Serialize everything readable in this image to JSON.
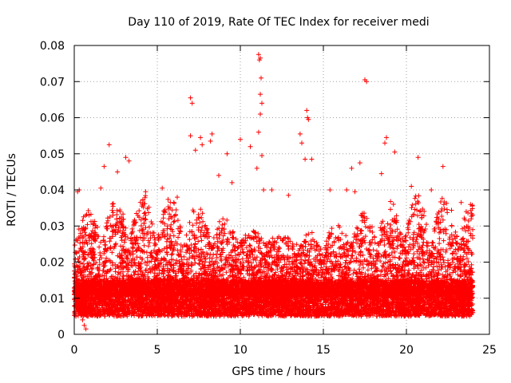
{
  "chart_data": {
    "type": "scatter",
    "title": "Day 110 of 2019, Rate Of TEC Index for receiver medi",
    "xlabel": "GPS time / hours",
    "ylabel": "ROTI / TECUs",
    "xlim": [
      0,
      25
    ],
    "ylim": [
      0,
      0.08
    ],
    "x_ticks": [
      0,
      5,
      10,
      15,
      20,
      25
    ],
    "x_tick_labels": [
      "0",
      "5",
      "10",
      "15",
      "20",
      "25"
    ],
    "y_ticks": [
      0,
      0.01,
      0.02,
      0.03,
      0.04,
      0.05,
      0.06,
      0.07,
      0.08
    ],
    "y_tick_labels": [
      "0",
      "0.01",
      "0.02",
      "0.03",
      "0.04",
      "0.05",
      "0.06",
      "0.07",
      "0.08"
    ],
    "grid": true,
    "marker": "plus",
    "color": "#ff0000",
    "x_data_range": [
      0,
      24
    ],
    "baseline_band": [
      0.005,
      0.015
    ],
    "points": [
      [
        0.2,
        0.0395
      ],
      [
        0.3,
        0.04
      ],
      [
        0.5,
        0.004
      ],
      [
        0.6,
        0.0025
      ],
      [
        0.7,
        0.0015
      ],
      [
        1.0,
        0.0165
      ],
      [
        1.6,
        0.0405
      ],
      [
        1.8,
        0.0465
      ],
      [
        2.1,
        0.0525
      ],
      [
        2.6,
        0.045
      ],
      [
        3.1,
        0.049
      ],
      [
        3.3,
        0.048
      ],
      [
        3.6,
        0.0305
      ],
      [
        4.3,
        0.0395
      ],
      [
        5.3,
        0.0405
      ],
      [
        6.2,
        0.038
      ],
      [
        7.0,
        0.0655
      ],
      [
        7.1,
        0.064
      ],
      [
        7.0,
        0.055
      ],
      [
        7.3,
        0.051
      ],
      [
        7.6,
        0.0545
      ],
      [
        7.7,
        0.0525
      ],
      [
        8.2,
        0.0535
      ],
      [
        8.3,
        0.0555
      ],
      [
        8.7,
        0.044
      ],
      [
        9.2,
        0.05
      ],
      [
        9.5,
        0.042
      ],
      [
        10.0,
        0.054
      ],
      [
        10.6,
        0.052
      ],
      [
        11.1,
        0.0775
      ],
      [
        11.15,
        0.076
      ],
      [
        11.2,
        0.0765
      ],
      [
        11.25,
        0.071
      ],
      [
        11.2,
        0.0665
      ],
      [
        11.3,
        0.064
      ],
      [
        11.2,
        0.061
      ],
      [
        11.1,
        0.056
      ],
      [
        11.3,
        0.0495
      ],
      [
        11.0,
        0.046
      ],
      [
        11.4,
        0.04
      ],
      [
        11.9,
        0.04
      ],
      [
        12.9,
        0.0385
      ],
      [
        13.6,
        0.0555
      ],
      [
        13.7,
        0.053
      ],
      [
        13.9,
        0.0485
      ],
      [
        14.0,
        0.062
      ],
      [
        14.05,
        0.06
      ],
      [
        14.1,
        0.0595
      ],
      [
        14.3,
        0.0485
      ],
      [
        15.4,
        0.04
      ],
      [
        16.4,
        0.04
      ],
      [
        16.9,
        0.0395
      ],
      [
        17.5,
        0.0705
      ],
      [
        17.6,
        0.07
      ],
      [
        16.7,
        0.046
      ],
      [
        17.2,
        0.0475
      ],
      [
        18.5,
        0.0445
      ],
      [
        18.7,
        0.053
      ],
      [
        18.8,
        0.0545
      ],
      [
        19.3,
        0.0505
      ],
      [
        20.3,
        0.041
      ],
      [
        20.7,
        0.049
      ],
      [
        21.5,
        0.04
      ],
      [
        22.2,
        0.0465
      ],
      [
        23.3,
        0.0365
      ],
      [
        23.6,
        0.034
      ],
      [
        23.9,
        0.032
      ],
      [
        0.1,
        0.005
      ],
      [
        24.0,
        0.006
      ]
    ]
  }
}
